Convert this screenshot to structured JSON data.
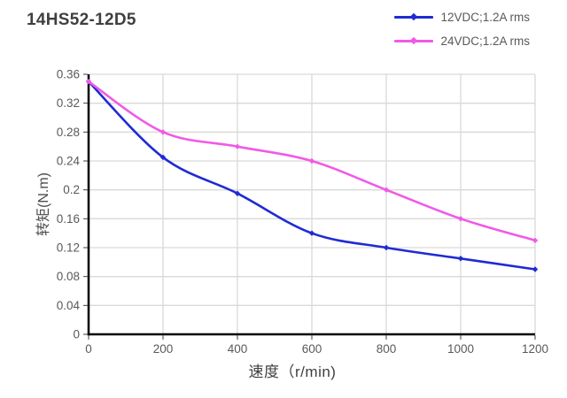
{
  "title": "14HS52-12D5",
  "chart_data": {
    "type": "line",
    "x": [
      0,
      200,
      400,
      600,
      800,
      1000,
      1200
    ],
    "series": [
      {
        "name": "12VDC;1.2A rms",
        "color": "#1f2bd4",
        "values": [
          0.35,
          0.245,
          0.195,
          0.14,
          0.12,
          0.105,
          0.09
        ]
      },
      {
        "name": "24VDC;1.2A rms",
        "color": "#f05ae6",
        "values": [
          0.35,
          0.28,
          0.26,
          0.24,
          0.2,
          0.16,
          0.13
        ]
      }
    ],
    "title": "14HS52-12D5",
    "xlabel": "速度（r/min)",
    "ylabel": "转矩(N.m)",
    "xlim": [
      0,
      1200
    ],
    "ylim": [
      0,
      0.36
    ],
    "x_ticks": [
      0,
      200,
      400,
      600,
      800,
      1000,
      1200
    ],
    "y_ticks": [
      0,
      0.04,
      0.08,
      0.12,
      0.16,
      0.2,
      0.24,
      0.28,
      0.32,
      0.36
    ],
    "grid": true,
    "smooth": true,
    "marker": "diamond",
    "legend_position": "top-right"
  },
  "colors": {
    "grid": "#d9d9d9",
    "axis": "#000000",
    "tick_text": "#595959",
    "title_text": "#3f3f3f",
    "legend_text": "#595959",
    "background": "#ffffff"
  }
}
